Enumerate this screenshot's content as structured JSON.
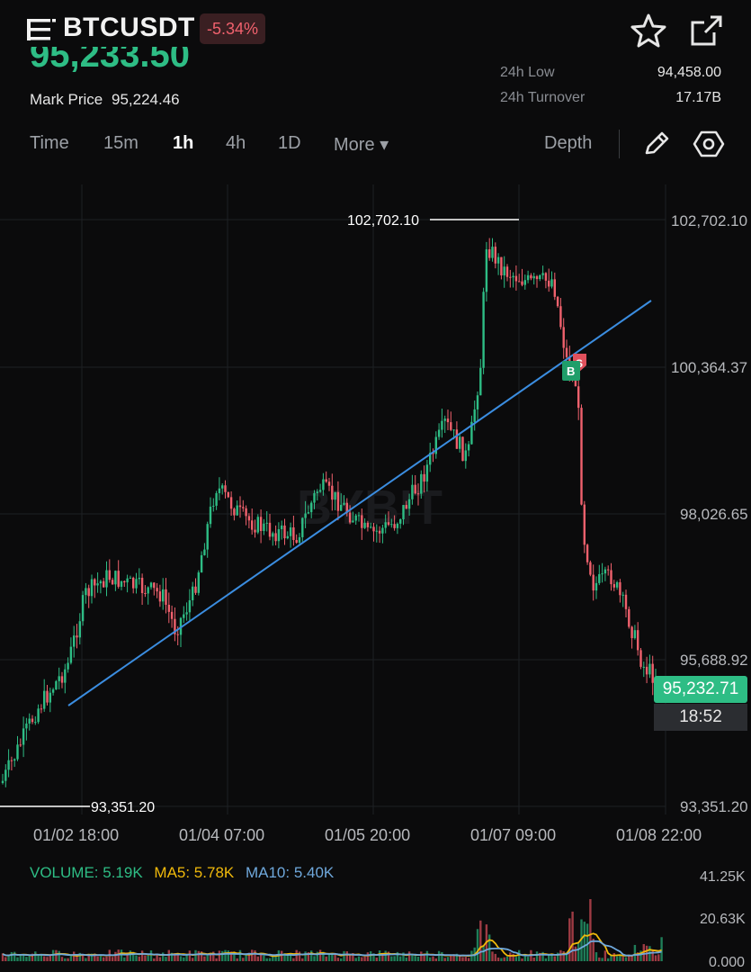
{
  "header": {
    "symbol": "BTCUSDT",
    "change": "-5.34%",
    "last_price": "95,233.50",
    "mark_price_label": "Mark Price",
    "mark_price_value": "95,224.46",
    "stats": [
      {
        "label": "24h Low",
        "value": "94,458.00"
      },
      {
        "label": "24h Turnover",
        "value": "17.17B"
      }
    ]
  },
  "tabs": [
    {
      "label": "Time",
      "active": false
    },
    {
      "label": "15m",
      "active": false
    },
    {
      "label": "1h",
      "active": true
    },
    {
      "label": "4h",
      "active": false
    },
    {
      "label": "1D",
      "active": false
    },
    {
      "label": "More ▾",
      "active": false
    },
    {
      "label": "Depth",
      "active": false
    }
  ],
  "chart": {
    "price_axis": [
      "102,702.10",
      "100,364.37",
      "98,026.65",
      "95,688.92",
      "93,351.20"
    ],
    "time_axis": [
      "01/02 18:00",
      "01/04 07:00",
      "01/05 20:00",
      "01/07 09:00",
      "01/08 22:00"
    ],
    "high_marker": "102,702.10",
    "low_marker": "93,351.20",
    "current_price": "95,232.71",
    "countdown": "18:52",
    "buy_marker": "B",
    "sell_marker": "S",
    "watermark": "BYBIT"
  },
  "volume": {
    "volume_label": "VOLUME: 5.19K",
    "ma5_label": "MA5: 5.78K",
    "ma10_label": "MA10: 5.40K",
    "axis": [
      "41.25K",
      "20.63K",
      "0.000"
    ]
  },
  "colors": {
    "up": "#2ebd85",
    "down": "#f0616d",
    "trendline": "#3b8de0",
    "ma5": "#f0b90b",
    "ma10": "#6fa8dc",
    "background": "#0b0b0c"
  }
}
